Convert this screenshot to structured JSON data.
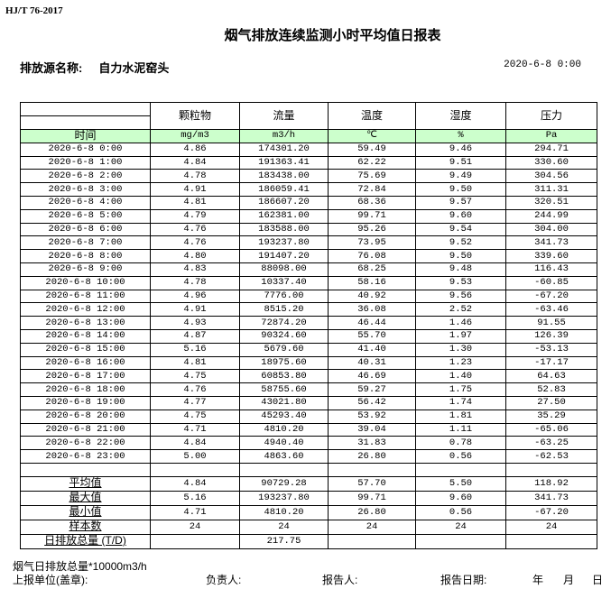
{
  "standard": "HJ/T  76-2017",
  "title": "烟气排放连续监测小时平均值日报表",
  "source_label": "排放源名称:",
  "source_name": "自力水泥窑头",
  "report_datetime": "2020-6-8 0:00",
  "columns": [
    "颗粒物",
    "流量",
    "温度",
    "湿度",
    "压力"
  ],
  "units_row": {
    "time_label": "时间",
    "units": [
      "mg/m3",
      "m3/h",
      "℃",
      "%",
      "Pa"
    ]
  },
  "rows": [
    [
      "2020-6-8 0:00",
      "4.86",
      "174301.20",
      "59.49",
      "9.46",
      "294.71"
    ],
    [
      "2020-6-8 1:00",
      "4.84",
      "191363.41",
      "62.22",
      "9.51",
      "330.60"
    ],
    [
      "2020-6-8 2:00",
      "4.78",
      "183438.00",
      "75.69",
      "9.49",
      "304.56"
    ],
    [
      "2020-6-8 3:00",
      "4.91",
      "186059.41",
      "72.84",
      "9.50",
      "311.31"
    ],
    [
      "2020-6-8 4:00",
      "4.81",
      "186607.20",
      "68.36",
      "9.57",
      "320.51"
    ],
    [
      "2020-6-8 5:00",
      "4.79",
      "162381.00",
      "99.71",
      "9.60",
      "244.99"
    ],
    [
      "2020-6-8 6:00",
      "4.76",
      "183588.00",
      "95.26",
      "9.54",
      "304.00"
    ],
    [
      "2020-6-8 7:00",
      "4.76",
      "193237.80",
      "73.95",
      "9.52",
      "341.73"
    ],
    [
      "2020-6-8 8:00",
      "4.80",
      "191407.20",
      "76.08",
      "9.50",
      "339.60"
    ],
    [
      "2020-6-8 9:00",
      "4.83",
      "88098.00",
      "68.25",
      "9.48",
      "116.43"
    ],
    [
      "2020-6-8 10:00",
      "4.78",
      "10337.40",
      "58.16",
      "9.53",
      "-60.85"
    ],
    [
      "2020-6-8 11:00",
      "4.96",
      "7776.00",
      "40.92",
      "9.56",
      "-67.20"
    ],
    [
      "2020-6-8 12:00",
      "4.91",
      "8515.20",
      "36.08",
      "2.52",
      "-63.46"
    ],
    [
      "2020-6-8 13:00",
      "4.93",
      "72874.20",
      "46.44",
      "1.46",
      "91.55"
    ],
    [
      "2020-6-8 14:00",
      "4.87",
      "90324.60",
      "55.70",
      "1.97",
      "126.39"
    ],
    [
      "2020-6-8 15:00",
      "5.16",
      "5679.60",
      "41.40",
      "1.30",
      "-53.13"
    ],
    [
      "2020-6-8 16:00",
      "4.81",
      "18975.60",
      "40.31",
      "1.23",
      "-17.17"
    ],
    [
      "2020-6-8 17:00",
      "4.75",
      "60853.80",
      "46.69",
      "1.40",
      "64.63"
    ],
    [
      "2020-6-8 18:00",
      "4.76",
      "58755.60",
      "59.27",
      "1.75",
      "52.83"
    ],
    [
      "2020-6-8 19:00",
      "4.77",
      "43021.80",
      "56.42",
      "1.74",
      "27.50"
    ],
    [
      "2020-6-8 20:00",
      "4.75",
      "45293.40",
      "53.92",
      "1.81",
      "35.29"
    ],
    [
      "2020-6-8 21:00",
      "4.71",
      "4810.20",
      "39.04",
      "1.11",
      "-65.06"
    ],
    [
      "2020-6-8 22:00",
      "4.84",
      "4940.40",
      "31.83",
      "0.78",
      "-63.25"
    ],
    [
      "2020-6-8 23:00",
      "5.00",
      "4863.60",
      "26.80",
      "0.56",
      "-62.53"
    ]
  ],
  "summary": [
    {
      "label": "平均值",
      "values": [
        "4.84",
        "90729.28",
        "57.70",
        "5.50",
        "118.92"
      ]
    },
    {
      "label": "最大值",
      "values": [
        "5.16",
        "193237.80",
        "99.71",
        "9.60",
        "341.73"
      ]
    },
    {
      "label": "最小值",
      "values": [
        "4.71",
        "4810.20",
        "26.80",
        "0.56",
        "-67.20"
      ]
    },
    {
      "label": "样本数",
      "values": [
        "24",
        "24",
        "24",
        "24",
        "24"
      ]
    },
    {
      "label": "日排放总量 (T/D)",
      "values": [
        "",
        "217.75",
        "",
        "",
        ""
      ]
    }
  ],
  "footer": {
    "note": "烟气日排放总量*10000m3/h",
    "unit_label": "上报单位(盖章):",
    "responsible_label": "负责人:",
    "reporter_label": "报告人:",
    "report_date_label": "报告日期:",
    "year": "年",
    "month": "月",
    "day": "日"
  }
}
